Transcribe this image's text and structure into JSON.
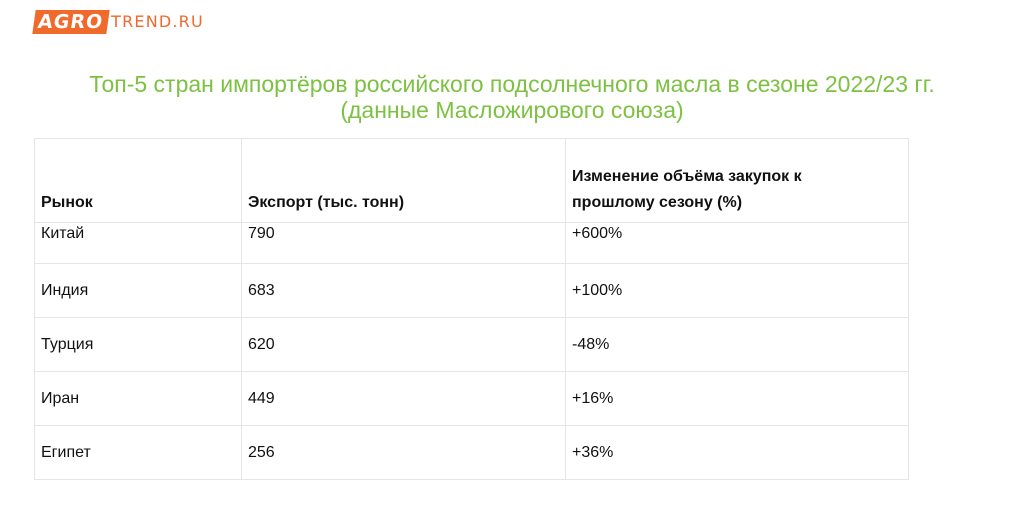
{
  "logo": {
    "box_text": "AGRO",
    "rest_text": "TREND.RU",
    "color": "#ef6a2b"
  },
  "title": {
    "line1": "Топ-5 стран импортёров российского подсолнечного масла в сезоне 2022/23 гг.",
    "line2": "(данные Масложирового союза)",
    "color": "#7dc142"
  },
  "table": {
    "headers": {
      "market": "Рынок",
      "export": "Экспорт (тыс. тонн)",
      "change_line1": "Изменение объёма закупок к",
      "change_line2": "прошлому сезону (%)"
    },
    "rows": [
      {
        "market": "Китай",
        "export": "790",
        "change": "+600%"
      },
      {
        "market": "Индия",
        "export": "683",
        "change": "+100%"
      },
      {
        "market": "Турция",
        "export": "620",
        "change": "-48%"
      },
      {
        "market": "Иран",
        "export": "449",
        "change": "+16%"
      },
      {
        "market": "Египет",
        "export": "256",
        "change": "+36%"
      }
    ]
  }
}
